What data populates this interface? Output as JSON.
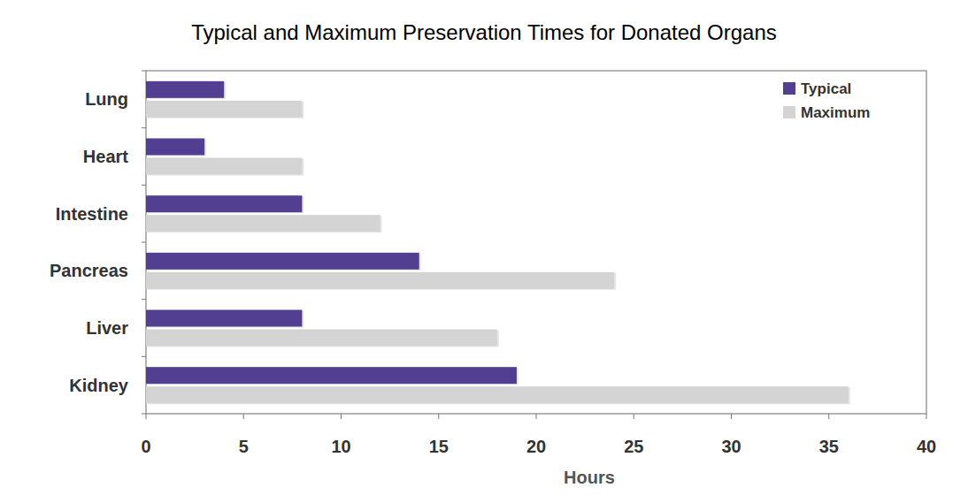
{
  "chart_data": {
    "type": "bar",
    "orientation": "horizontal",
    "title": "Typical and Maximum Preservation Times for Donated Organs",
    "xlabel": "Hours",
    "categories": [
      "Lung",
      "Heart",
      "Intestine",
      "Pancreas",
      "Liver",
      "Kidney"
    ],
    "series": [
      {
        "name": "Typical",
        "color": "#523f91",
        "values": [
          4,
          3,
          8,
          14,
          8,
          19
        ]
      },
      {
        "name": "Maximum",
        "color": "#d4d4d4",
        "values": [
          8,
          8,
          12,
          24,
          18,
          36
        ]
      }
    ],
    "xlim": [
      0,
      40
    ],
    "xticks": [
      0,
      5,
      10,
      15,
      20,
      25,
      30,
      35,
      40
    ],
    "grid": false,
    "legend": "upper right"
  }
}
